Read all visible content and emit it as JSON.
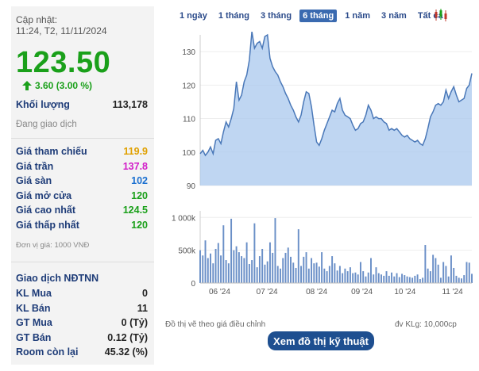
{
  "update": {
    "label": "Cập nhật:",
    "time": "11:24, T2, 11/11/2024"
  },
  "price": "123.50",
  "change": "3.60 (3.00 %)",
  "volume": {
    "label": "Khối lượng",
    "value": "113,178"
  },
  "status": "Đang giao dịch",
  "stats": [
    {
      "label": "Giá tham chiếu",
      "value": "119.9",
      "color": "#e0a000"
    },
    {
      "label": "Giá trần",
      "value": "137.8",
      "color": "#d21cc8"
    },
    {
      "label": "Giá sàn",
      "value": "102",
      "color": "#1a6fd0"
    },
    {
      "label": "Giá mở cửa",
      "value": "120",
      "color": "#1aa01a"
    },
    {
      "label": "Giá cao nhất",
      "value": "124.5",
      "color": "#1aa01a"
    },
    {
      "label": "Giá thấp nhất",
      "value": "120",
      "color": "#1aa01a"
    }
  ],
  "unit_note": "Đơn vị giá: 1000 VNĐ",
  "foreign": {
    "title": "Giao dịch NĐTNN",
    "rows": [
      {
        "label": "KL Mua",
        "value": "0"
      },
      {
        "label": "KL Bán",
        "value": "11"
      },
      {
        "label": "GT Mua",
        "value": "0 (Tỷ)"
      },
      {
        "label": "GT Bán",
        "value": "0.12 (Tỷ)"
      },
      {
        "label": "Room còn lại",
        "value": "45.32 (%)"
      }
    ]
  },
  "tabs": [
    "1 ngày",
    "1 tháng",
    "3 tháng",
    "6 tháng",
    "1 năm",
    "3 năm",
    "Tất cả"
  ],
  "active_tab": "6 tháng",
  "chart_footnote_left": "Đồ thị vẽ theo giá điều chỉnh",
  "chart_footnote_right": "đv KLg: 10,000cp",
  "tech_button": "Xem đồ thị kỹ thuật",
  "chart_data": {
    "type": "area",
    "price_ticks": [
      "90",
      "100",
      "110",
      "120",
      "130"
    ],
    "volume_ticks": [
      "0",
      "500k",
      "1 000k"
    ],
    "x_ticks": [
      "06 '24",
      "07 '24",
      "08 '24",
      "09 '24",
      "10 '24",
      "11 '24"
    ],
    "ylim": [
      90,
      135
    ],
    "vol_max": 1100000,
    "line_color": "#4a78b8",
    "fill_color": "#a9c8ee",
    "price": [
      99.5,
      100.5,
      99.0,
      100.0,
      101.5,
      99.5,
      103.5,
      104.0,
      102.5,
      106.0,
      109.0,
      107.5,
      110.0,
      113.0,
      121.0,
      115.5,
      117.0,
      121.0,
      123.0,
      127.5,
      136.0,
      131.0,
      132.5,
      133.0,
      131.0,
      134.5,
      135.0,
      128.0,
      125.5,
      124.0,
      123.0,
      121.0,
      119.5,
      117.5,
      116.0,
      114.0,
      112.5,
      110.5,
      109.0,
      111.0,
      115.0,
      118.0,
      117.5,
      113.5,
      108.0,
      103.0,
      102.0,
      104.0,
      106.5,
      108.5,
      110.5,
      112.5,
      112.0,
      114.5,
      116.0,
      112.5,
      111.0,
      110.5,
      110.0,
      108.0,
      106.5,
      107.0,
      108.5,
      109.0,
      111.0,
      114.0,
      112.5,
      110.0,
      110.5,
      110.0,
      110.0,
      109.0,
      108.5,
      106.5,
      107.0,
      106.5,
      107.0,
      106.0,
      105.0,
      104.5,
      105.0,
      104.0,
      103.5,
      103.0,
      103.5,
      102.5,
      102.0,
      104.0,
      107.0,
      110.5,
      112.0,
      114.0,
      114.5,
      114.0,
      115.0,
      118.5,
      116.0,
      118.0,
      119.5,
      117.0,
      115.0,
      115.5,
      116.0,
      119.0,
      120.0,
      123.5
    ],
    "volume": [
      500,
      420,
      650,
      380,
      450,
      300,
      520,
      610,
      420,
      880,
      350,
      300,
      980,
      500,
      560,
      470,
      410,
      380,
      620,
      290,
      350,
      910,
      240,
      410,
      520,
      280,
      330,
      620,
      460,
      990,
      260,
      220,
      380,
      460,
      540,
      400,
      310,
      230,
      820,
      260,
      400,
      470,
      220,
      380,
      300,
      310,
      250,
      470,
      220,
      180,
      260,
      410,
      300,
      190,
      260,
      150,
      220,
      180,
      240,
      150,
      160,
      130,
      320,
      180,
      100,
      160,
      380,
      130,
      240,
      150,
      130,
      110,
      180,
      110,
      160,
      100,
      150,
      90,
      140,
      120,
      100,
      90,
      80,
      110,
      130,
      60,
      80,
      580,
      220,
      180,
      430,
      380,
      280,
      80,
      320,
      260,
      100,
      420,
      230,
      110,
      80,
      70,
      120,
      320,
      310,
      140
    ]
  }
}
